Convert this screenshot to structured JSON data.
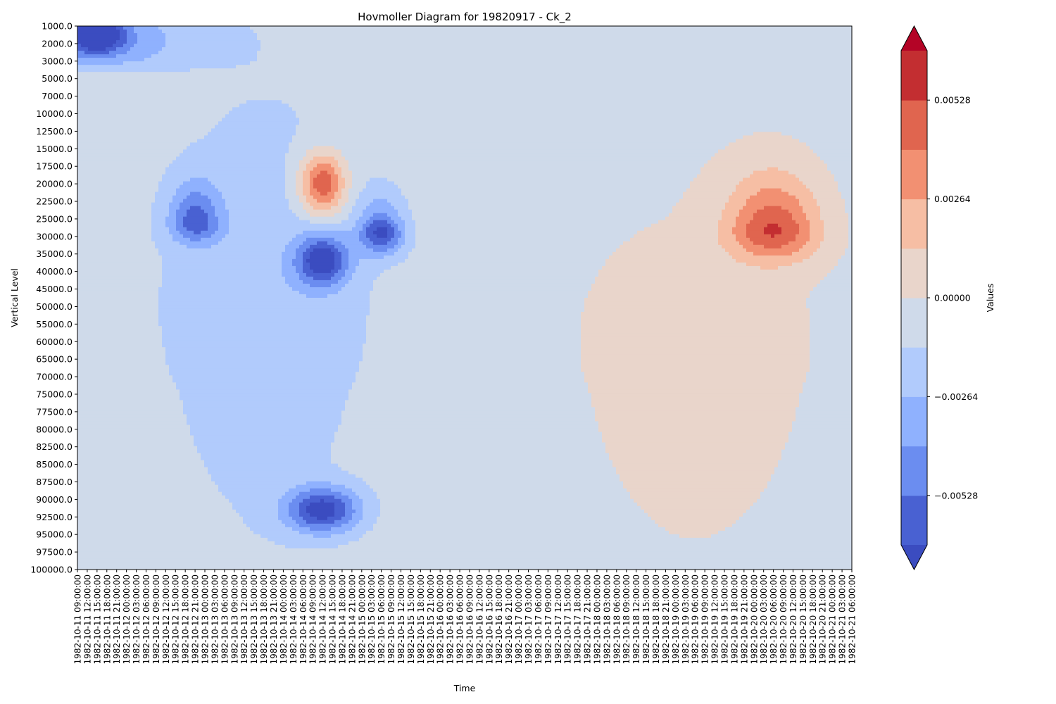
{
  "chart_data": {
    "type": "heatmap",
    "subtype": "filled-contour",
    "title": "Hovmoller Diagram for 19820917 - Ck_2",
    "xlabel": "Time",
    "ylabel": "Vertical Level",
    "colorbar_label": "Values",
    "colormap": "coolwarm",
    "y_inverted": true,
    "grid": false,
    "y_levels": [
      "1000.0",
      "2000.0",
      "3000.0",
      "5000.0",
      "7000.0",
      "10000.0",
      "12500.0",
      "15000.0",
      "17500.0",
      "20000.0",
      "22500.0",
      "25000.0",
      "30000.0",
      "35000.0",
      "40000.0",
      "45000.0",
      "50000.0",
      "55000.0",
      "60000.0",
      "65000.0",
      "70000.0",
      "75000.0",
      "77500.0",
      "80000.0",
      "82500.0",
      "85000.0",
      "87500.0",
      "90000.0",
      "92500.0",
      "95000.0",
      "97500.0",
      "100000.0"
    ],
    "x_times": [
      "1982-10-11 09:00:00",
      "1982-10-11 12:00:00",
      "1982-10-11 15:00:00",
      "1982-10-11 18:00:00",
      "1982-10-11 21:00:00",
      "1982-10-12 00:00:00",
      "1982-10-12 03:00:00",
      "1982-10-12 06:00:00",
      "1982-10-12 09:00:00",
      "1982-10-12 12:00:00",
      "1982-10-12 15:00:00",
      "1982-10-12 18:00:00",
      "1982-10-12 21:00:00",
      "1982-10-13 00:00:00",
      "1982-10-13 03:00:00",
      "1982-10-13 06:00:00",
      "1982-10-13 09:00:00",
      "1982-10-13 12:00:00",
      "1982-10-13 15:00:00",
      "1982-10-13 18:00:00",
      "1982-10-13 21:00:00",
      "1982-10-14 00:00:00",
      "1982-10-14 03:00:00",
      "1982-10-14 06:00:00",
      "1982-10-14 09:00:00",
      "1982-10-14 12:00:00",
      "1982-10-14 15:00:00",
      "1982-10-14 18:00:00",
      "1982-10-14 21:00:00",
      "1982-10-15 00:00:00",
      "1982-10-15 03:00:00",
      "1982-10-15 06:00:00",
      "1982-10-15 09:00:00",
      "1982-10-15 12:00:00",
      "1982-10-15 15:00:00",
      "1982-10-15 18:00:00",
      "1982-10-15 21:00:00",
      "1982-10-16 00:00:00",
      "1982-10-16 03:00:00",
      "1982-10-16 06:00:00",
      "1982-10-16 09:00:00",
      "1982-10-16 12:00:00",
      "1982-10-16 15:00:00",
      "1982-10-16 18:00:00",
      "1982-10-16 21:00:00",
      "1982-10-17 00:00:00",
      "1982-10-17 03:00:00",
      "1982-10-17 06:00:00",
      "1982-10-17 09:00:00",
      "1982-10-17 12:00:00",
      "1982-10-17 15:00:00",
      "1982-10-17 18:00:00",
      "1982-10-17 21:00:00",
      "1982-10-18 00:00:00",
      "1982-10-18 03:00:00",
      "1982-10-18 06:00:00",
      "1982-10-18 09:00:00",
      "1982-10-18 12:00:00",
      "1982-10-18 15:00:00",
      "1982-10-18 18:00:00",
      "1982-10-18 21:00:00",
      "1982-10-19 00:00:00",
      "1982-10-19 03:00:00",
      "1982-10-19 06:00:00",
      "1982-10-19 09:00:00",
      "1982-10-19 12:00:00",
      "1982-10-19 15:00:00",
      "1982-10-19 18:00:00",
      "1982-10-19 21:00:00",
      "1982-10-20 00:00:00",
      "1982-10-20 03:00:00",
      "1982-10-20 06:00:00",
      "1982-10-20 09:00:00",
      "1982-10-20 12:00:00",
      "1982-10-20 15:00:00",
      "1982-10-20 18:00:00",
      "1982-10-20 21:00:00",
      "1982-10-21 00:00:00",
      "1982-10-21 03:00:00",
      "1982-10-21 06:00:00"
    ],
    "colorbar_ticks": [
      {
        "value": 0.00528,
        "label": "0.00528"
      },
      {
        "value": 0.00264,
        "label": "0.00264"
      },
      {
        "value": 0.0,
        "label": "0.00000"
      },
      {
        "value": -0.00264,
        "label": "−0.00264"
      },
      {
        "value": -0.00528,
        "label": "−0.00528"
      }
    ],
    "contour_levels": [
      -0.0066,
      -0.00528,
      -0.00396,
      -0.00264,
      -0.00132,
      0.0,
      0.00132,
      0.00264,
      0.00396,
      0.00528,
      0.0066
    ],
    "band_colors": [
      "#3b4cc0",
      "#4961d2",
      "#6b8df0",
      "#8fb1fe",
      "#b1cbfc",
      "#cfdaea",
      "#e9d5cb",
      "#f6bea4",
      "#f29072",
      "#e0654f",
      "#c32e31",
      "#b40426"
    ],
    "background_value": -0.0005,
    "features": [
      {
        "time": "1982-10-14 12:00:00",
        "level": 20000.0,
        "value": 0.0062,
        "dt_hours": 7,
        "dlevel": 4500
      },
      {
        "time": "1982-10-14 12:00:00",
        "level": 37000.0,
        "value": -0.0064,
        "dt_hours": 8,
        "dlevel": 7000
      },
      {
        "time": "1982-10-14 12:00:00",
        "level": 91500.0,
        "value": -0.0064,
        "dt_hours": 11,
        "dlevel": 3200
      },
      {
        "time": "1982-10-15 06:00:00",
        "level": 29000.0,
        "value": -0.006,
        "dt_hours": 7,
        "dlevel": 6000
      },
      {
        "time": "1982-10-12 21:00:00",
        "level": 26000.0,
        "value": -0.0048,
        "dt_hours": 8,
        "dlevel": 6000
      },
      {
        "time": "1982-10-20 06:00:00",
        "level": 28000.0,
        "value": 0.0056,
        "dt_hours": 14,
        "dlevel": 9000
      },
      {
        "time": "1982-10-11 15:00:00",
        "level": 1500.0,
        "value": -0.006,
        "dt_hours": 8,
        "dlevel": 1000
      },
      {
        "time": "1982-10-11 12:00:00",
        "level": 1800.0,
        "value": -0.0035,
        "dt_hours": 30,
        "dlevel": 2000
      },
      {
        "time": "1982-10-19 06:00:00",
        "level": 60000.0,
        "value": 0.0011,
        "dt_hours": 40,
        "dlevel": 40000
      },
      {
        "time": "1982-10-13 18:00:00",
        "level": 50000.0,
        "value": -0.0018,
        "dt_hours": 36,
        "dlevel": 48000
      }
    ]
  }
}
